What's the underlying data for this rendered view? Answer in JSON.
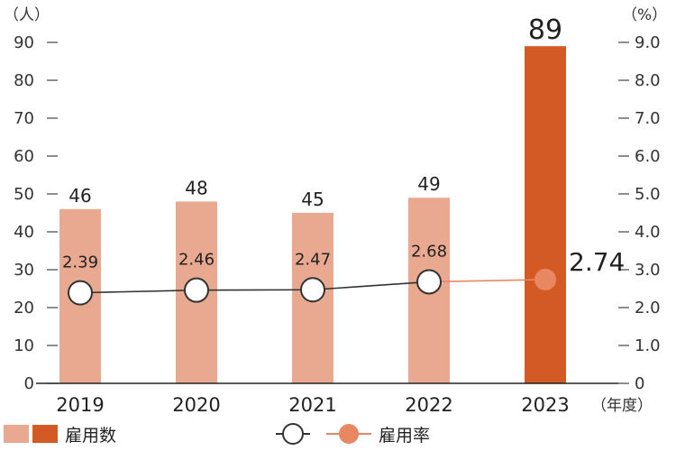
{
  "chart_data": {
    "type": "bar",
    "categories": [
      "2019",
      "2020",
      "2021",
      "2022",
      "2023"
    ],
    "x_unit": "（年度）",
    "left_axis": {
      "unit": "（人）",
      "ylim": [
        0,
        90
      ],
      "ticks": [
        "0",
        "10",
        "20",
        "30",
        "40",
        "50",
        "60",
        "70",
        "80",
        "90"
      ]
    },
    "right_axis": {
      "unit": "（%）",
      "ylim": [
        0,
        9.0
      ],
      "ticks": [
        "0",
        "1.0",
        "2.0",
        "3.0",
        "4.0",
        "5.0",
        "6.0",
        "7.0",
        "8.0",
        "9.0"
      ]
    },
    "series": [
      {
        "name": "雇用数",
        "type": "bar",
        "axis": "left",
        "values": [
          46,
          48,
          45,
          49,
          89
        ],
        "labels": [
          "46",
          "48",
          "45",
          "49",
          "89"
        ]
      },
      {
        "name": "雇用率",
        "type": "line",
        "axis": "right",
        "values": [
          2.39,
          2.46,
          2.47,
          2.68,
          2.74
        ],
        "labels": [
          "2.39",
          "2.46",
          "2.47",
          "2.68",
          "2.74"
        ]
      }
    ],
    "colors": {
      "bar": "#e9a990",
      "bar_highlight": "#d35a25",
      "line": "#333333",
      "line_highlight": "#e88762",
      "marker_fill": "#ffffff",
      "marker_highlight": "#e88762"
    },
    "legend": {
      "placement": "bottom",
      "bar_label": "雇用数",
      "line_label": "雇用率"
    },
    "grid": false
  }
}
